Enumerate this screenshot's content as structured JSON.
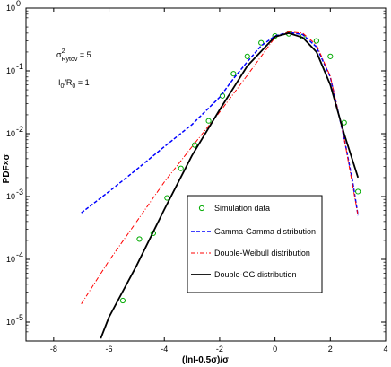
{
  "chart_data": {
    "type": "line",
    "title": "",
    "xlabel": "(lnI-0.5σ)/σ",
    "ylabel": "PDF×σ",
    "xlim": [
      -9,
      4
    ],
    "ylim_log10": [
      -5.3,
      0
    ],
    "yscale": "log",
    "x_ticks": [
      -8,
      -6,
      -4,
      -2,
      0,
      2,
      4
    ],
    "x_tick_labels": [
      "-8",
      "-6",
      "-4",
      "-2",
      "0",
      "2",
      "4"
    ],
    "y_ticks_log10": [
      0,
      -1,
      -2,
      -3,
      -4,
      -5
    ],
    "y_tick_labels": [
      {
        "base": "10",
        "exp": "0"
      },
      {
        "base": "10",
        "exp": "-1"
      },
      {
        "base": "10",
        "exp": "-2"
      },
      {
        "base": "10",
        "exp": "-3"
      },
      {
        "base": "10",
        "exp": "-4"
      },
      {
        "base": "10",
        "exp": "-5"
      }
    ],
    "annotations": [
      {
        "base": "σ",
        "sup": "2",
        "sub": "Rytov",
        "rest": " = 5"
      },
      {
        "base": "I",
        "sub": "0",
        "mid": "/R",
        "sub2": "0",
        "rest": " = 1"
      }
    ],
    "legend": {
      "position": "bottom-right",
      "entries": [
        {
          "label": "Simulation data",
          "style": "marker",
          "color": "#00aa00"
        },
        {
          "label": "Gamma-Gamma distribution",
          "style": "dashed",
          "color": "#0000ff"
        },
        {
          "label": "Double-Weibull distribution",
          "style": "dashdot",
          "color": "#ff0000"
        },
        {
          "label": "Double-GG distribution",
          "style": "solid",
          "color": "#000000"
        }
      ]
    },
    "series": [
      {
        "name": "Simulation data",
        "style": "marker",
        "color": "#00aa00",
        "x": [
          -5.5,
          -4.9,
          -4.4,
          -3.9,
          -3.4,
          -2.9,
          -2.4,
          -1.9,
          -1.5,
          -1.0,
          -0.5,
          0.0,
          0.5,
          1.0,
          1.5,
          2.0,
          2.5,
          3.0
        ],
        "y": [
          2.2e-05,
          0.00021,
          0.00026,
          0.00095,
          0.0028,
          0.0066,
          0.016,
          0.04,
          0.09,
          0.17,
          0.28,
          0.36,
          0.39,
          0.35,
          0.3,
          0.17,
          0.015,
          0.0012
        ]
      },
      {
        "name": "Gamma-Gamma distribution",
        "style": "dashed",
        "color": "#0000ff",
        "x": [
          -7.0,
          -6.0,
          -5.0,
          -4.0,
          -3.0,
          -2.0,
          -1.5,
          -1.0,
          -0.5,
          0.0,
          0.5,
          1.0,
          1.5,
          2.0,
          2.5,
          2.8,
          3.0
        ],
        "y": [
          0.00055,
          0.0012,
          0.0027,
          0.0062,
          0.014,
          0.038,
          0.075,
          0.14,
          0.25,
          0.36,
          0.41,
          0.38,
          0.24,
          0.08,
          0.0085,
          0.0018,
          0.0005
        ]
      },
      {
        "name": "Double-Weibull distribution",
        "style": "dashdot",
        "color": "#ff0000",
        "x": [
          -7.0,
          -6.0,
          -5.0,
          -4.0,
          -3.0,
          -2.0,
          -1.0,
          0.0,
          0.5,
          1.0,
          1.5,
          2.0,
          2.5,
          3.0
        ],
        "y": [
          1.95e-05,
          9.5e-05,
          0.0004,
          0.0017,
          0.0062,
          0.022,
          0.085,
          0.34,
          0.42,
          0.4,
          0.26,
          0.082,
          0.0085,
          0.0005
        ]
      },
      {
        "name": "Double-GG distribution",
        "style": "solid",
        "color": "#000000",
        "x": [
          -6.3,
          -6.0,
          -5.0,
          -4.0,
          -3.0,
          -2.0,
          -1.0,
          0.0,
          0.5,
          1.0,
          1.5,
          2.0,
          2.5,
          3.0
        ],
        "y": [
          5.5e-06,
          1.2e-05,
          8e-05,
          0.00062,
          0.0045,
          0.024,
          0.12,
          0.35,
          0.4,
          0.34,
          0.2,
          0.06,
          0.01,
          0.002
        ]
      }
    ]
  }
}
